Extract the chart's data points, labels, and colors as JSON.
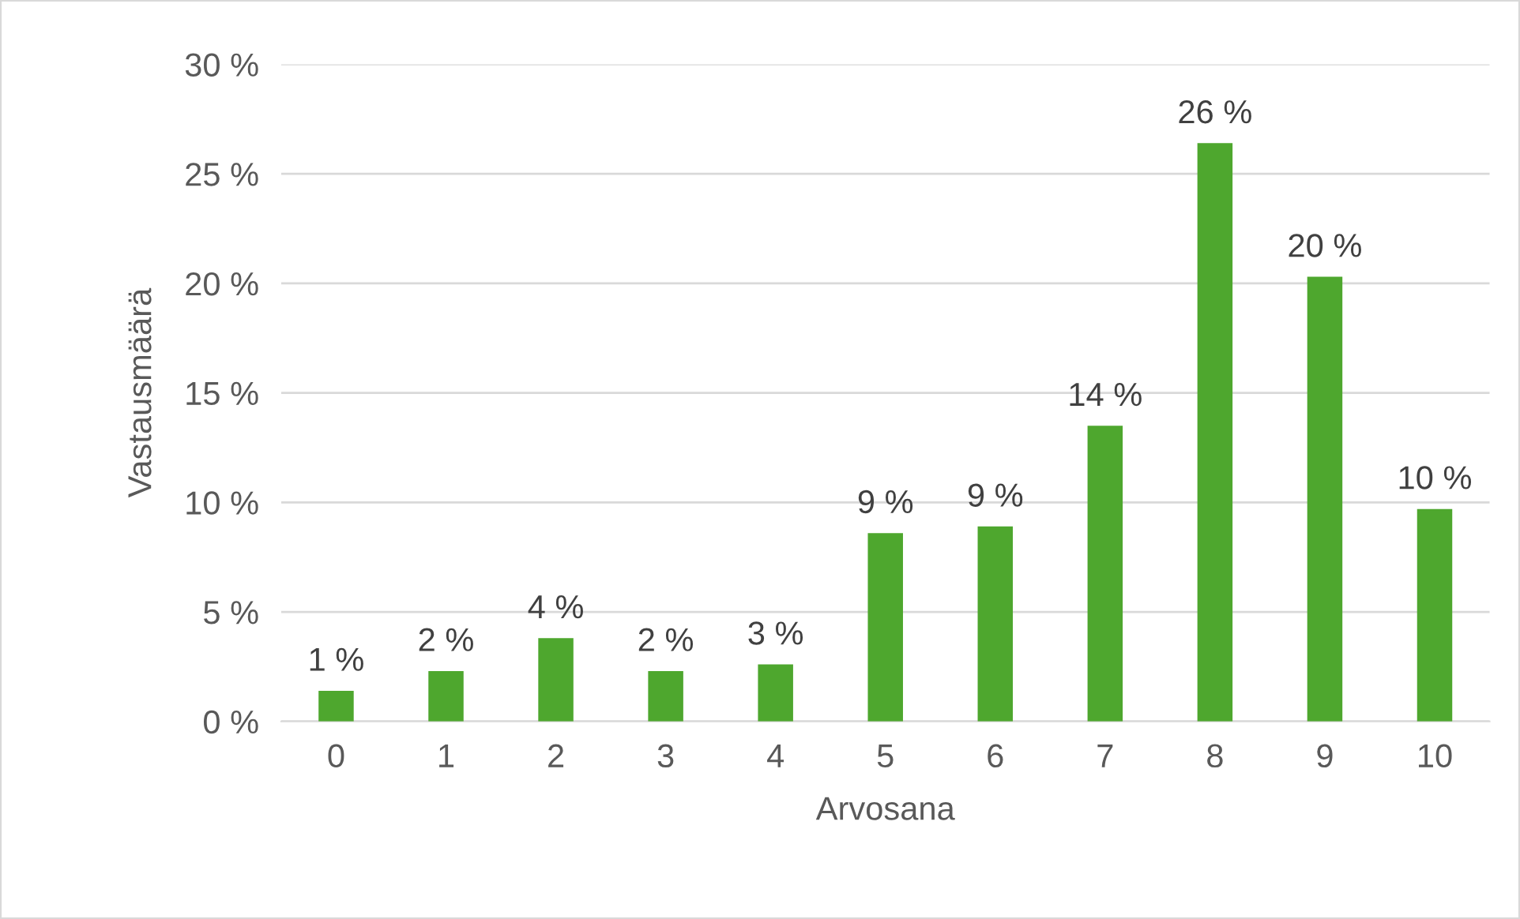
{
  "chart_data": {
    "type": "bar",
    "xlabel": "Arvosana",
    "ylabel": "Vastausmäärä",
    "categories": [
      "0",
      "1",
      "2",
      "3",
      "4",
      "5",
      "6",
      "7",
      "8",
      "9",
      "10"
    ],
    "values": [
      1.4,
      2.3,
      3.8,
      2.3,
      2.6,
      8.6,
      8.9,
      13.5,
      26.4,
      20.3,
      9.7
    ],
    "value_labels": [
      "1 %",
      "2 %",
      "4 %",
      "2 %",
      "3 %",
      "9 %",
      "9 %",
      "14 %",
      "26 %",
      "20 %",
      "10 %"
    ],
    "color": "#4ea72e",
    "ylim": [
      0,
      30
    ],
    "yticks": [
      {
        "value": 0,
        "label": "0 %"
      },
      {
        "value": 5,
        "label": "5 %"
      },
      {
        "value": 10,
        "label": "10 %"
      },
      {
        "value": 15,
        "label": "15 %"
      },
      {
        "value": 20,
        "label": "20 %"
      },
      {
        "value": 25,
        "label": "25 %"
      },
      {
        "value": 30,
        "label": "30 %"
      }
    ],
    "grid": "y",
    "legend": false
  }
}
